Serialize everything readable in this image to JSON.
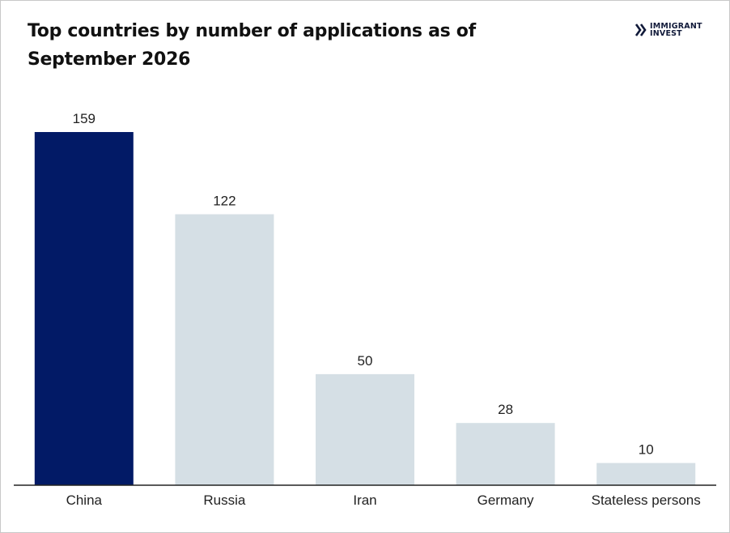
{
  "page": {
    "title": "Top countries by number of applications as of September 2026",
    "brand": {
      "line1": "IMMIGRANT",
      "line2": "INVEST",
      "icon": "double-chevron-right-icon"
    }
  },
  "colors": {
    "highlight": "#021a66",
    "bar": "#d5dfe5",
    "axis": "#222222",
    "text": "#222222"
  },
  "chart_data": {
    "type": "bar",
    "categories": [
      "China",
      "Russia",
      "Iran",
      "Germany",
      "Stateless persons"
    ],
    "values": [
      159,
      122,
      50,
      28,
      10
    ],
    "highlighted": [
      "China"
    ],
    "title": "Top countries by number of applications as of September 2026",
    "xlabel": "",
    "ylabel": "",
    "ylim": [
      0,
      159
    ],
    "grid": false,
    "legend": "none",
    "data_labels": true
  }
}
